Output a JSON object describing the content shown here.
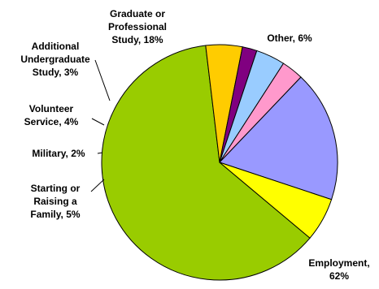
{
  "chart_data": {
    "type": "pie",
    "title": "",
    "slices": [
      {
        "label": "Employment, 62%",
        "label_lines": [
          "Employment,",
          "62%"
        ],
        "value": 62,
        "color": "#99cc00"
      },
      {
        "label": "Starting or Raising a Family, 5%",
        "label_lines": [
          "Starting or",
          "Raising a",
          "Family, 5%"
        ],
        "value": 5,
        "color": "#ffcc00"
      },
      {
        "label": "Military, 2%",
        "label_lines": [
          "Military, 2%"
        ],
        "value": 2,
        "color": "#800080"
      },
      {
        "label": "Volunteer Service, 4%",
        "label_lines": [
          "Volunteer",
          "Service, 4%"
        ],
        "value": 4,
        "color": "#99ccff"
      },
      {
        "label": "Additional Undergraduate Study, 3%",
        "label_lines": [
          "Additional",
          "Undergraduate",
          "Study, 3%"
        ],
        "value": 3,
        "color": "#ff99cc"
      },
      {
        "label": "Graduate or Professional Study, 18%",
        "label_lines": [
          "Graduate or",
          "Professional",
          "Study, 18%"
        ],
        "value": 18,
        "color": "#9999ff"
      },
      {
        "label": "Other, 6%",
        "label_lines": [
          "Other, 6%"
        ],
        "value": 6,
        "color": "#ffff00"
      }
    ]
  }
}
